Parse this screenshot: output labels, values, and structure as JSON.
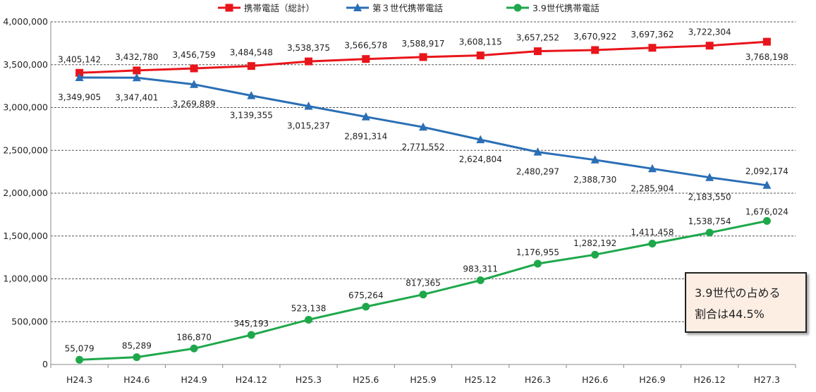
{
  "chart_data": {
    "type": "line",
    "categories": [
      "H24.3",
      "H24.6",
      "H24.9",
      "H24.12",
      "H25.3",
      "H25.6",
      "H25.9",
      "H25.12",
      "H26.3",
      "H26.6",
      "H26.9",
      "H26.12",
      "H27.3"
    ],
    "ylim": [
      0,
      4000000
    ],
    "yticks": [
      "0",
      "500,000",
      "1,000,000",
      "1,500,000",
      "2,000,000",
      "2,500,000",
      "3,000,000",
      "3,500,000",
      "4,000,000"
    ],
    "ytick_values": [
      0,
      500000,
      1000000,
      1500000,
      2000000,
      2500000,
      3000000,
      3500000,
      4000000
    ],
    "grid": "horizontal dashed",
    "legend_position": "top-center",
    "series": [
      {
        "name": "携帯電話（総計）",
        "color": "#e8151b",
        "marker": "square",
        "values": [
          3405142,
          3432780,
          3456759,
          3484548,
          3538375,
          3566578,
          3588917,
          3608115,
          3657252,
          3670922,
          3697362,
          3722304,
          3768198
        ],
        "labels": [
          "3,405,142",
          "3,432,780",
          "3,456,759",
          "3,484,548",
          "3,538,375",
          "3,566,578",
          "3,588,917",
          "3,608,115",
          "3,657,252",
          "3,670,922",
          "3,697,362",
          "3,722,304",
          "3,768,198"
        ]
      },
      {
        "name": "第３世代携帯電話",
        "color": "#2a6fb5",
        "marker": "triangle",
        "values": [
          3349905,
          3347401,
          3269889,
          3139355,
          3015237,
          2891314,
          2771552,
          2624804,
          2480297,
          2388730,
          2285904,
          2183550,
          2092174
        ],
        "labels": [
          "3,349,905",
          "3,347,401",
          "3,269,889",
          "3,139,355",
          "3,015,237",
          "2,891,314",
          "2,771,552",
          "2,624,804",
          "2,480,297",
          "2,388,730",
          "2,285,904",
          "2,183,550",
          "2,092,174"
        ]
      },
      {
        "name": "3.9世代携帯電話",
        "color": "#1ea84b",
        "marker": "circle",
        "values": [
          55079,
          85289,
          186870,
          345193,
          523138,
          675264,
          817365,
          983311,
          1176955,
          1282192,
          1411458,
          1538754,
          1676024
        ],
        "labels": [
          "55,079",
          "85,289",
          "186,870",
          "345,193",
          "523,138",
          "675,264",
          "817,365",
          "983,311",
          "1,176,955",
          "1,282,192",
          "1,411,458",
          "1,538,754",
          "1,676,024"
        ]
      }
    ]
  },
  "annotation": {
    "line1": "3.9世代の占める",
    "line2": "割合は44.5%"
  }
}
